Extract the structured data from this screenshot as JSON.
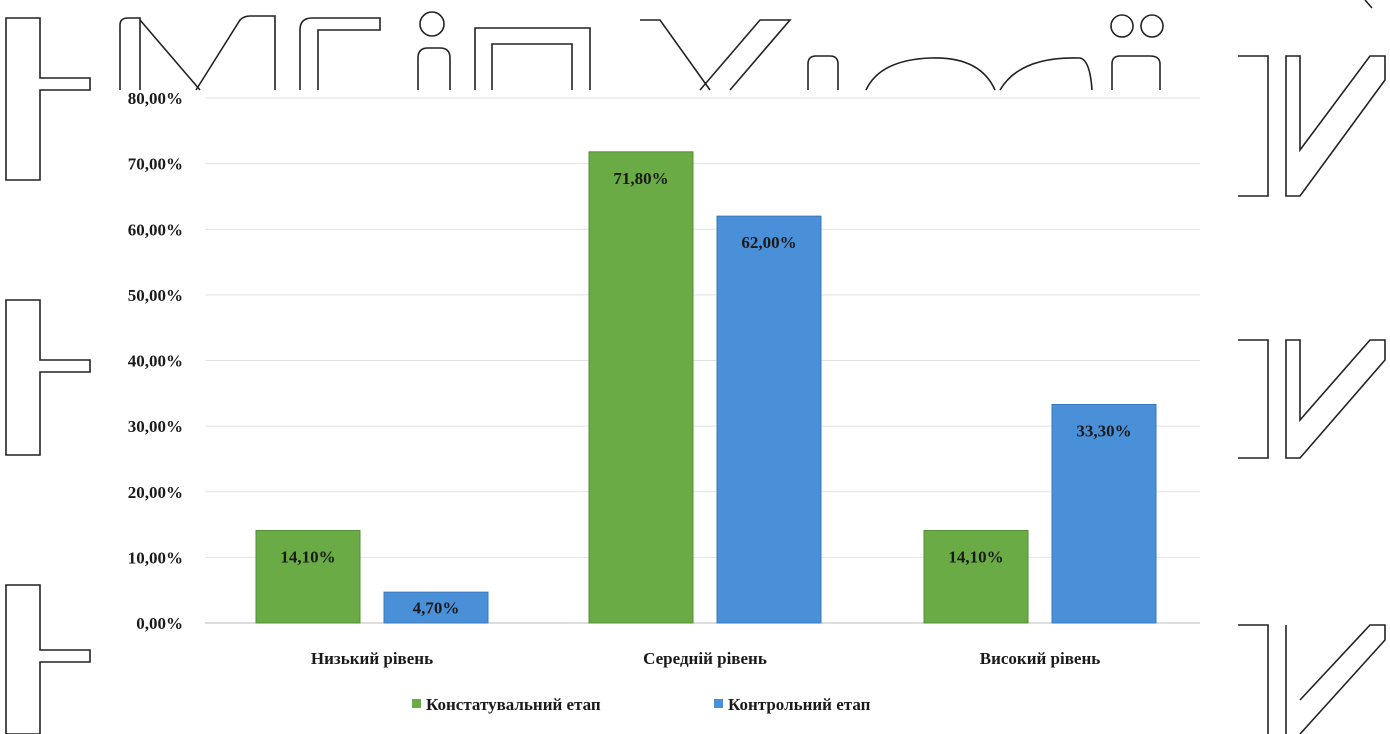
{
  "chart_data": {
    "type": "bar",
    "categories": [
      "Низький рівень",
      "Середній рівень",
      "Високий рівень"
    ],
    "series": [
      {
        "name": "Констатувальний етап",
        "values": [
          14.1,
          71.8,
          14.1
        ],
        "labels": [
          "14,10%",
          "71,80%",
          "14,10%"
        ],
        "color": "#6aab46"
      },
      {
        "name": "Контрольний етап",
        "values": [
          4.7,
          62.0,
          33.3
        ],
        "labels": [
          "4,70%",
          "62,00%",
          "33,30%"
        ],
        "color": "#4a90d9"
      }
    ],
    "y_ticks": [
      "0,00%",
      "10,00%",
      "20,00%",
      "30,00%",
      "40,00%",
      "50,00%",
      "60,00%",
      "70,00%",
      "80,00%"
    ],
    "ylim": [
      0,
      80
    ],
    "grid": true,
    "legend_position": "bottom",
    "title": "",
    "xlabel": "",
    "ylabel": ""
  }
}
